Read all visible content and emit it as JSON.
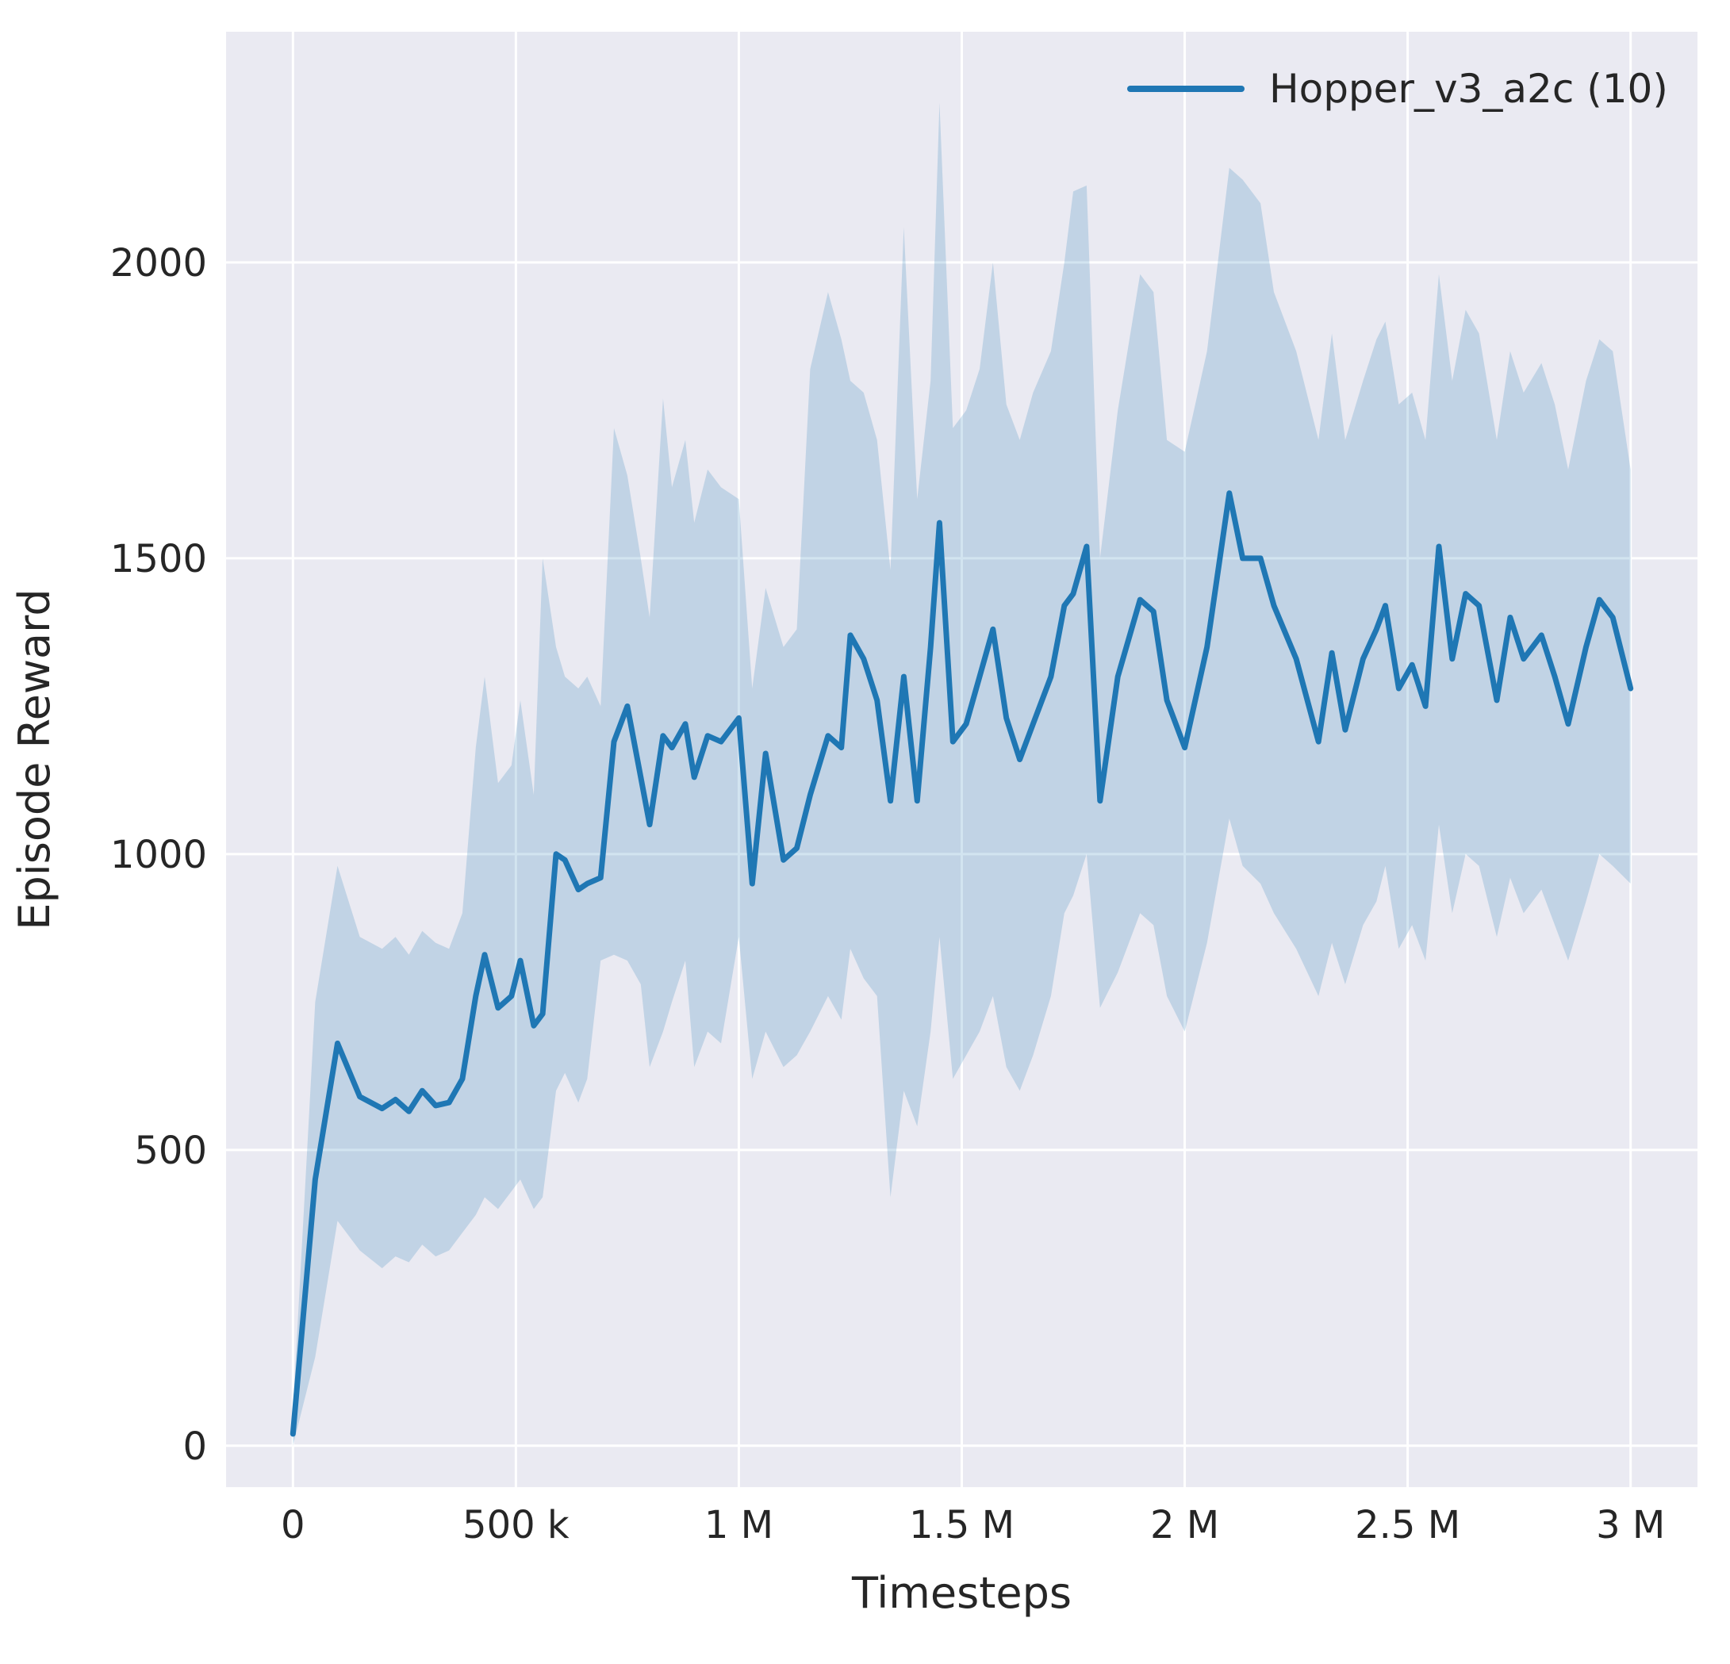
{
  "colors": {
    "line": "#1f77b4",
    "band_fill": "#1f77b4",
    "band_opacity": 0.2,
    "axes_bg": "#eaeaf2",
    "grid": "#ffffff",
    "text": "#262626",
    "figure_bg": "#ffffff"
  },
  "legend": {
    "label": "Hopper_v3_a2c (10)"
  },
  "chart_data": {
    "type": "line",
    "title": "",
    "xlabel": "Timesteps",
    "ylabel": "Episode Reward",
    "legend_position": "upper right",
    "grid": true,
    "xlim": [
      -150000,
      3150000
    ],
    "ylim": [
      -70,
      2390
    ],
    "x_scale": 1000,
    "xticks": [
      {
        "value": 0,
        "label": "0"
      },
      {
        "value": 500000,
        "label": "500 k"
      },
      {
        "value": 1000000,
        "label": "1 M"
      },
      {
        "value": 1500000,
        "label": "1.5 M"
      },
      {
        "value": 2000000,
        "label": "2 M"
      },
      {
        "value": 2500000,
        "label": "2.5 M"
      },
      {
        "value": 3000000,
        "label": "3 M"
      }
    ],
    "yticks": [
      {
        "value": 0,
        "label": "0"
      },
      {
        "value": 500,
        "label": "500"
      },
      {
        "value": 1000,
        "label": "1000"
      },
      {
        "value": 1500,
        "label": "1500"
      },
      {
        "value": 2000,
        "label": "2000"
      }
    ],
    "series": [
      {
        "name": "Hopper_v3_a2c (10)",
        "x_unit": "thousand timesteps",
        "x": [
          0,
          50,
          100,
          150,
          200,
          230,
          260,
          290,
          320,
          350,
          380,
          410,
          430,
          460,
          490,
          510,
          540,
          560,
          590,
          610,
          640,
          660,
          690,
          720,
          750,
          780,
          800,
          830,
          850,
          880,
          900,
          930,
          960,
          1000,
          1030,
          1060,
          1100,
          1130,
          1160,
          1200,
          1230,
          1250,
          1280,
          1310,
          1340,
          1370,
          1400,
          1430,
          1450,
          1480,
          1510,
          1540,
          1570,
          1600,
          1630,
          1660,
          1700,
          1730,
          1750,
          1780,
          1810,
          1850,
          1900,
          1930,
          1960,
          2000,
          2050,
          2100,
          2130,
          2170,
          2200,
          2250,
          2300,
          2330,
          2360,
          2400,
          2430,
          2450,
          2480,
          2510,
          2540,
          2570,
          2600,
          2630,
          2660,
          2700,
          2730,
          2760,
          2800,
          2830,
          2860,
          2900,
          2930,
          2960,
          3000
        ],
        "mean": [
          20,
          450,
          680,
          590,
          570,
          585,
          565,
          600,
          575,
          580,
          620,
          760,
          830,
          740,
          760,
          820,
          710,
          730,
          1000,
          990,
          940,
          950,
          960,
          1190,
          1250,
          1130,
          1050,
          1200,
          1180,
          1220,
          1130,
          1200,
          1190,
          1230,
          950,
          1170,
          990,
          1010,
          1100,
          1200,
          1180,
          1370,
          1330,
          1260,
          1090,
          1300,
          1090,
          1350,
          1560,
          1190,
          1220,
          1300,
          1380,
          1230,
          1160,
          1220,
          1300,
          1420,
          1440,
          1520,
          1090,
          1300,
          1430,
          1410,
          1260,
          1180,
          1350,
          1610,
          1500,
          1500,
          1420,
          1330,
          1190,
          1340,
          1210,
          1330,
          1380,
          1420,
          1280,
          1320,
          1250,
          1520,
          1330,
          1440,
          1420,
          1260,
          1400,
          1330,
          1370,
          1300,
          1220,
          1350,
          1430,
          1400,
          1280
        ],
        "band_low": [
          0,
          150,
          380,
          330,
          300,
          320,
          310,
          340,
          320,
          330,
          360,
          390,
          420,
          400,
          430,
          450,
          400,
          420,
          600,
          630,
          580,
          620,
          820,
          830,
          820,
          780,
          640,
          700,
          750,
          820,
          640,
          700,
          680,
          860,
          620,
          700,
          640,
          660,
          700,
          760,
          720,
          840,
          790,
          760,
          420,
          600,
          540,
          700,
          860,
          620,
          660,
          700,
          760,
          640,
          600,
          660,
          760,
          900,
          930,
          1000,
          740,
          800,
          900,
          880,
          760,
          700,
          850,
          1060,
          980,
          950,
          900,
          840,
          760,
          850,
          780,
          880,
          920,
          980,
          840,
          880,
          820,
          1050,
          900,
          1000,
          980,
          860,
          960,
          900,
          940,
          880,
          820,
          920,
          1000,
          980,
          950
        ],
        "band_high": [
          60,
          750,
          980,
          860,
          840,
          860,
          830,
          870,
          850,
          840,
          900,
          1180,
          1300,
          1120,
          1150,
          1260,
          1100,
          1500,
          1350,
          1300,
          1280,
          1300,
          1250,
          1720,
          1640,
          1500,
          1400,
          1770,
          1620,
          1700,
          1560,
          1650,
          1620,
          1600,
          1280,
          1450,
          1350,
          1380,
          1820,
          1950,
          1870,
          1800,
          1780,
          1700,
          1480,
          2060,
          1600,
          1800,
          2270,
          1720,
          1750,
          1820,
          2000,
          1760,
          1700,
          1780,
          1850,
          2000,
          2120,
          2130,
          1500,
          1750,
          1980,
          1950,
          1700,
          1680,
          1850,
          2160,
          2140,
          2100,
          1950,
          1850,
          1700,
          1880,
          1700,
          1800,
          1870,
          1900,
          1760,
          1780,
          1700,
          1980,
          1800,
          1920,
          1880,
          1700,
          1850,
          1780,
          1830,
          1760,
          1650,
          1800,
          1870,
          1850,
          1650
        ]
      }
    ]
  }
}
